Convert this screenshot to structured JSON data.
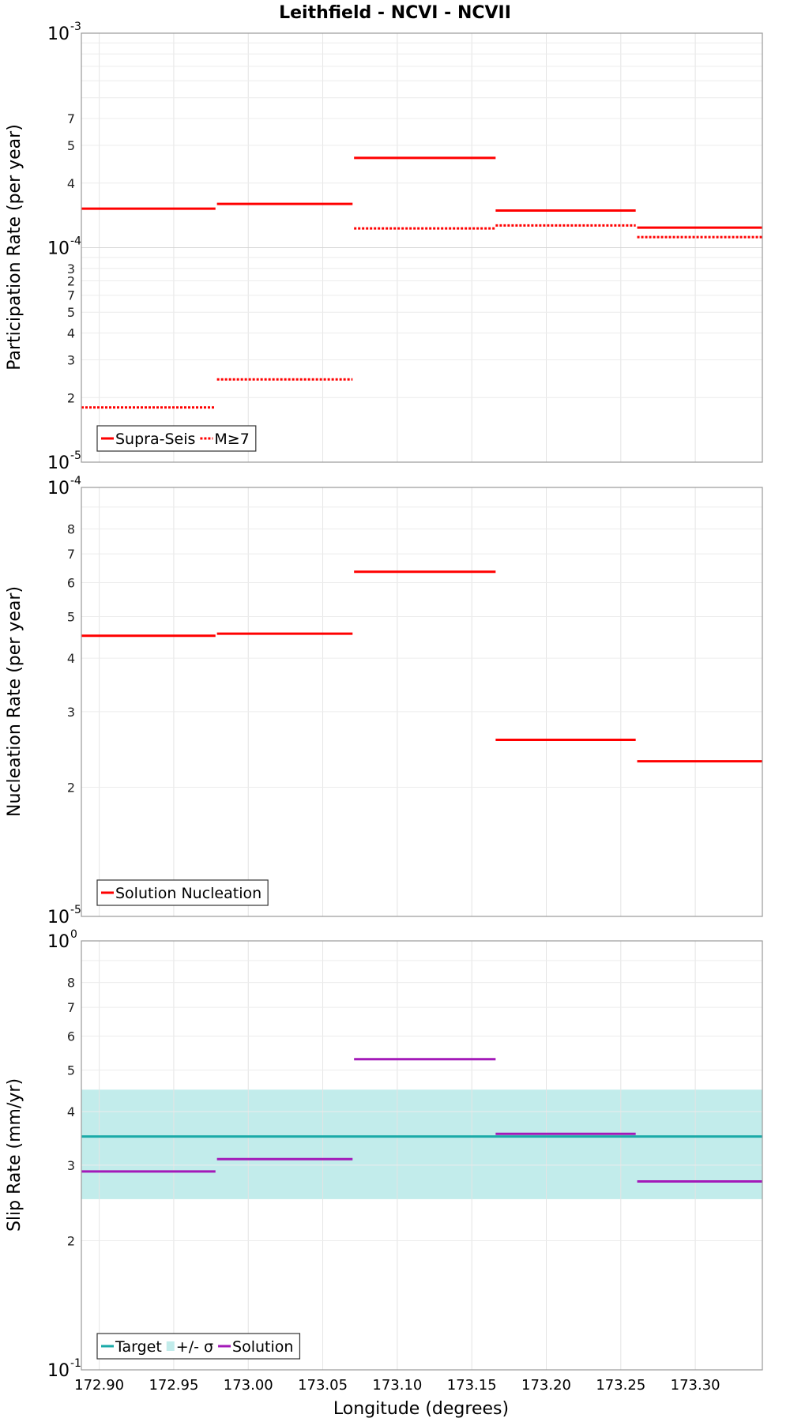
{
  "figure": {
    "title": "Leithfield - NCVI - NCVII",
    "xlabel": "Longitude (degrees)",
    "x_ticks": [
      "172.90",
      "172.95",
      "173.00",
      "173.05",
      "173.10",
      "173.15",
      "173.20",
      "173.25",
      "173.30"
    ]
  },
  "chart_data": [
    {
      "type": "line",
      "step": true,
      "ylabel": "Participation Rate (per year)",
      "yscale": "log",
      "ylim": [
        1e-05,
        0.001
      ],
      "xlim": [
        172.888,
        173.345
      ],
      "grid": true,
      "legend_position": "bottom-left",
      "y_decades": [
        {
          "base": "10",
          "exp": "-3"
        },
        {
          "base": "10",
          "exp": "-4"
        },
        {
          "base": "10",
          "exp": "-5"
        }
      ],
      "y_minor_ticks": [
        "2",
        "3",
        "4",
        "5",
        "7",
        "2",
        "3",
        "4",
        "5",
        "7"
      ],
      "series": [
        {
          "name": "Supra-Seis",
          "color": "#ff0000",
          "style": "solid",
          "segments": [
            {
              "x0": 172.888,
              "x1": 172.978,
              "y": 0.000152
            },
            {
              "x0": 172.979,
              "x1": 173.07,
              "y": 0.00016
            },
            {
              "x0": 173.071,
              "x1": 173.166,
              "y": 0.000262
            },
            {
              "x0": 173.166,
              "x1": 173.26,
              "y": 0.000149
            },
            {
              "x0": 173.261,
              "x1": 173.345,
              "y": 0.000124
            }
          ]
        },
        {
          "name": "M≥7",
          "color": "#ff0000",
          "style": "dotted",
          "segments": [
            {
              "x0": 172.888,
              "x1": 172.978,
              "y": 1.8e-05
            },
            {
              "x0": 172.979,
              "x1": 173.07,
              "y": 2.43e-05
            },
            {
              "x0": 173.071,
              "x1": 173.166,
              "y": 0.000123
            },
            {
              "x0": 173.166,
              "x1": 173.26,
              "y": 0.000127
            },
            {
              "x0": 173.261,
              "x1": 173.345,
              "y": 0.000112
            }
          ]
        }
      ]
    },
    {
      "type": "line",
      "step": true,
      "ylabel": "Nucleation Rate (per year)",
      "yscale": "log",
      "ylim": [
        1e-05,
        0.0001
      ],
      "xlim": [
        172.888,
        173.345
      ],
      "grid": true,
      "legend_position": "bottom-left",
      "y_decades": [
        {
          "base": "10",
          "exp": "-4"
        },
        {
          "base": "10",
          "exp": "-5"
        }
      ],
      "y_minor_ticks": [
        "2",
        "3",
        "4",
        "5",
        "6",
        "7",
        "8"
      ],
      "series": [
        {
          "name": "Solution Nucleation",
          "color": "#ff0000",
          "style": "solid",
          "segments": [
            {
              "x0": 172.888,
              "x1": 172.978,
              "y": 4.51e-05
            },
            {
              "x0": 172.979,
              "x1": 173.07,
              "y": 4.56e-05
            },
            {
              "x0": 173.071,
              "x1": 173.166,
              "y": 6.36e-05
            },
            {
              "x0": 173.166,
              "x1": 173.26,
              "y": 2.58e-05
            },
            {
              "x0": 173.261,
              "x1": 173.345,
              "y": 2.3e-05
            }
          ]
        }
      ]
    },
    {
      "type": "line",
      "step": true,
      "ylabel": "Slip Rate (mm/yr)",
      "yscale": "log",
      "ylim": [
        0.1,
        1.0
      ],
      "xlim": [
        172.888,
        173.345
      ],
      "grid": true,
      "legend_position": "bottom-left",
      "y_decades": [
        {
          "base": "10",
          "exp": "0"
        },
        {
          "base": "10",
          "exp": "-1"
        }
      ],
      "y_minor_ticks": [
        "2",
        "3",
        "4",
        "5",
        "6",
        "7",
        "8"
      ],
      "band": {
        "name": "+/- σ",
        "color": "#a8e4e2",
        "y0": 0.25,
        "y1": 0.45
      },
      "series": [
        {
          "name": "Target",
          "color": "#1aaaa8",
          "style": "solid",
          "segments": [
            {
              "x0": 172.888,
              "x1": 173.345,
              "y": 0.35
            }
          ]
        },
        {
          "name": "Solution",
          "color": "#a319b8",
          "style": "solid",
          "segments": [
            {
              "x0": 172.888,
              "x1": 172.978,
              "y": 0.29
            },
            {
              "x0": 172.979,
              "x1": 173.07,
              "y": 0.31
            },
            {
              "x0": 173.071,
              "x1": 173.166,
              "y": 0.53
            },
            {
              "x0": 173.166,
              "x1": 173.26,
              "y": 0.355
            },
            {
              "x0": 173.261,
              "x1": 173.345,
              "y": 0.275
            }
          ]
        }
      ]
    }
  ]
}
